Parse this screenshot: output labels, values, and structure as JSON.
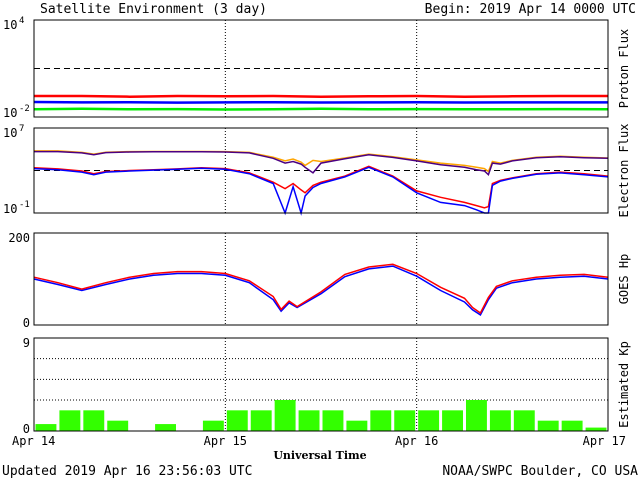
{
  "header": {
    "title": "Satellite Environment (3 day)",
    "begin": "Begin:  2019 Apr 14 0000 UTC"
  },
  "footer": {
    "updated": "Updated 2019 Apr 16 23:56:03 UTC",
    "credit": "NOAA/SWPC Boulder, CO USA"
  },
  "chart_data": [
    {
      "type": "line",
      "panel": "proton",
      "ylabel": "Proton Flux",
      "yscale": "log",
      "ylim": [
        0.01,
        10000
      ],
      "ytick_labels": [
        {
          "base": "10",
          "exp": "4"
        },
        {
          "base": "10",
          "exp": "-2"
        }
      ],
      "threshold": 10,
      "x": [
        0,
        6,
        12,
        18,
        24,
        30,
        36,
        42,
        48,
        54,
        60,
        66,
        72
      ],
      "series": [
        {
          "color": "#ff0000",
          "values": [
            0.2,
            0.2,
            0.18,
            0.2,
            0.19,
            0.2,
            0.18,
            0.19,
            0.2,
            0.18,
            0.19,
            0.2,
            0.2
          ]
        },
        {
          "color": "#0000ff",
          "values": [
            0.085,
            0.08,
            0.082,
            0.078,
            0.08,
            0.082,
            0.079,
            0.08,
            0.081,
            0.079,
            0.08,
            0.08,
            0.08
          ]
        },
        {
          "color": "#00ee00",
          "values": [
            0.03,
            0.032,
            0.03,
            0.031,
            0.029,
            0.03,
            0.032,
            0.03,
            0.031,
            0.03,
            0.03,
            0.031,
            0.03
          ]
        }
      ]
    },
    {
      "type": "line",
      "panel": "electron",
      "ylabel": "Electron Flux",
      "yscale": "log",
      "ylim": [
        0.1,
        10000000
      ],
      "ytick_labels": [
        {
          "base": "10",
          "exp": "7"
        },
        {
          "base": "10",
          "exp": "-1"
        }
      ],
      "threshold": 1000,
      "x": [
        0,
        3,
        6,
        7.5,
        9,
        12,
        15,
        18,
        21,
        24,
        27,
        30,
        31.5,
        32.5,
        33.5,
        34,
        35,
        36,
        39,
        42,
        45,
        48,
        51,
        54,
        55.5,
        56.5,
        57,
        57.5,
        58.5,
        60,
        63,
        66,
        69,
        72
      ],
      "series": [
        {
          "color": "#ffa500",
          "values": [
            70000,
            70000,
            50000,
            35000,
            52000,
            60000,
            62000,
            62000,
            62000,
            60000,
            50000,
            18000,
            8000,
            12000,
            6000,
            3000,
            9000,
            7000,
            15000,
            35000,
            20000,
            10000,
            5000,
            3000,
            2000,
            1500,
            800,
            7000,
            5000,
            9000,
            18000,
            22000,
            18000,
            15000
          ]
        },
        {
          "color": "#4b0082",
          "values": [
            60000,
            60000,
            45000,
            30000,
            48000,
            55000,
            58000,
            58000,
            58000,
            55000,
            45000,
            14000,
            5000,
            7000,
            4000,
            2000,
            600,
            5000,
            13000,
            30000,
            17000,
            8000,
            3500,
            2000,
            1200,
            900,
            400,
            5000,
            4000,
            8000,
            16000,
            20000,
            16000,
            14000
          ]
        },
        {
          "color": "#ff0000",
          "values": [
            1800,
            1400,
            900,
            500,
            800,
            1000,
            1200,
            1400,
            1800,
            1500,
            600,
            80,
            20,
            60,
            15,
            8,
            40,
            80,
            300,
            2500,
            300,
            12,
            3,
            1,
            0.5,
            0.3,
            0.4,
            60,
            120,
            200,
            500,
            700,
            500,
            300
          ]
        },
        {
          "color": "#0000ff",
          "values": [
            1500,
            1200,
            700,
            400,
            700,
            900,
            1100,
            1300,
            1600,
            1300,
            500,
            60,
            0.1,
            30,
            0.1,
            4,
            25,
            60,
            250,
            2000,
            250,
            8,
            1,
            0.5,
            0.2,
            0.1,
            0.1,
            40,
            100,
            180,
            450,
            600,
            400,
            250
          ]
        }
      ]
    },
    {
      "type": "line",
      "panel": "goes-hp",
      "ylabel": "GOES Hp",
      "ylim": [
        0,
        200
      ],
      "ytick_labels": [
        "200",
        "0"
      ],
      "x": [
        0,
        3,
        6,
        9,
        12,
        15,
        18,
        21,
        24,
        27,
        30,
        31,
        32,
        33,
        36,
        39,
        42,
        45,
        48,
        51,
        54,
        55,
        56,
        57,
        58,
        60,
        63,
        66,
        69,
        72
      ],
      "series": [
        {
          "color": "#0000ff",
          "values": [
            100,
            88,
            75,
            88,
            100,
            108,
            112,
            112,
            108,
            92,
            55,
            30,
            48,
            38,
            68,
            105,
            122,
            128,
            106,
            75,
            50,
            33,
            22,
            55,
            80,
            92,
            100,
            104,
            106,
            100
          ]
        },
        {
          "color": "#ff0000",
          "values": [
            104,
            92,
            78,
            92,
            104,
            112,
            116,
            116,
            112,
            96,
            62,
            34,
            52,
            40,
            72,
            110,
            126,
            132,
            112,
            82,
            58,
            38,
            26,
            60,
            84,
            96,
            104,
            108,
            110,
            104
          ]
        }
      ]
    },
    {
      "type": "bar",
      "panel": "kp",
      "ylabel": "Estimated Kp",
      "ylim": [
        0,
        9
      ],
      "ytick_labels": [
        "9",
        "0"
      ],
      "color": "#33ff00",
      "bar_hours": 3,
      "values": [
        0.67,
        2,
        2,
        1,
        0,
        0.67,
        0,
        1,
        2,
        2,
        3,
        2,
        2,
        1,
        2,
        2,
        2,
        2,
        3,
        2,
        2,
        1,
        1,
        0.33
      ]
    }
  ],
  "x_axis": {
    "label": "Universal Time",
    "ticks": [
      {
        "hour": 0,
        "label": "Apr 14"
      },
      {
        "hour": 24,
        "label": "Apr 15"
      },
      {
        "hour": 48,
        "label": "Apr 16"
      },
      {
        "hour": 72,
        "label": "Apr 17"
      }
    ]
  }
}
